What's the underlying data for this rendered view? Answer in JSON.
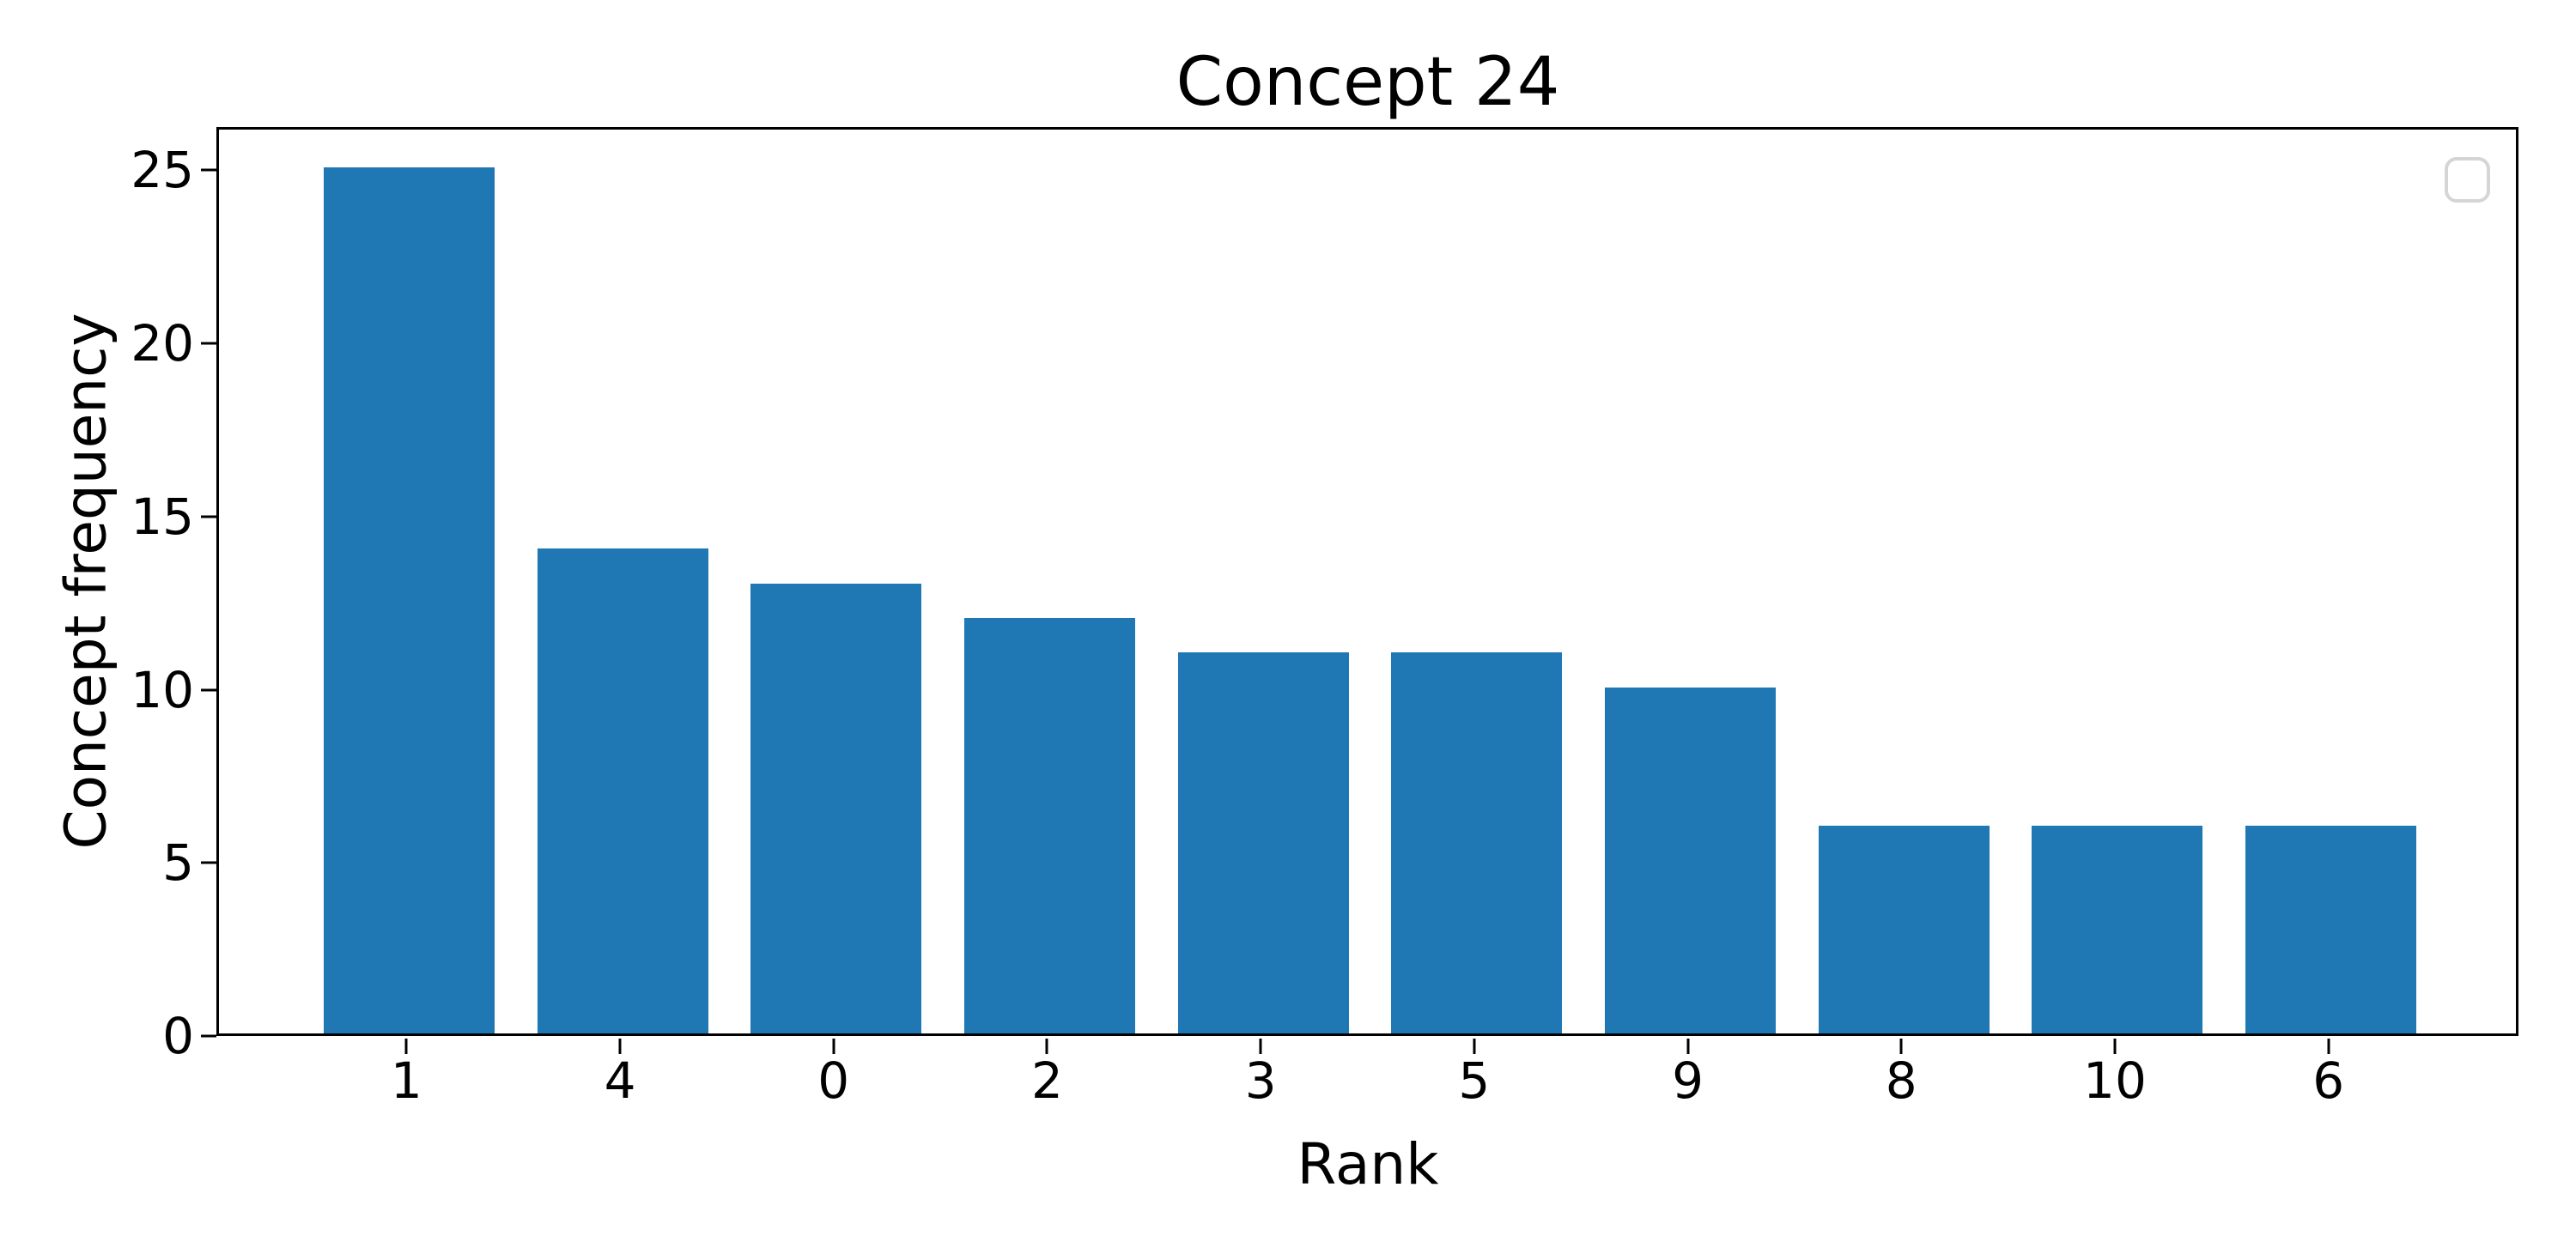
{
  "chart_data": {
    "type": "bar",
    "title": "Concept 24",
    "xlabel": "Rank",
    "ylabel": "Concept frequency",
    "categories": [
      "1",
      "4",
      "0",
      "2",
      "3",
      "5",
      "9",
      "8",
      "10",
      "6"
    ],
    "values": [
      25,
      14,
      13,
      12,
      11,
      11,
      10,
      6,
      6,
      6
    ],
    "yticks": [
      0,
      5,
      10,
      15,
      20,
      25
    ],
    "ylim": [
      0,
      26.25
    ],
    "bar_color": "#1f77b4",
    "axis_color": "#000000",
    "text_color": "#000000",
    "grid": false,
    "legend": {
      "present": true,
      "entries": [],
      "position": "upper right",
      "border_color": "#d5d5d5"
    }
  }
}
